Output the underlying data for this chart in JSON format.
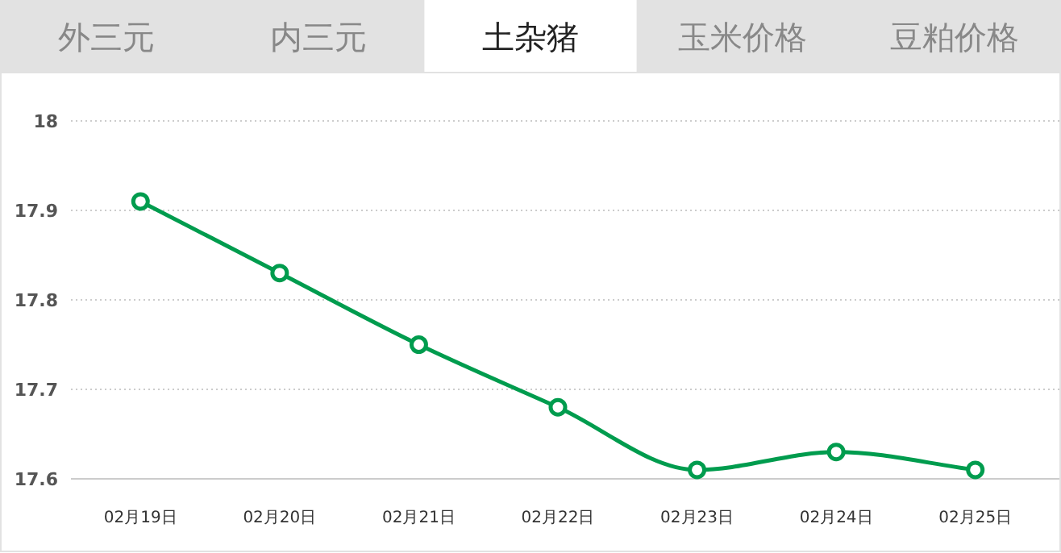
{
  "chart_data": {
    "type": "line",
    "title": "土杂猪",
    "annotations": [
      "外三元",
      "内三元",
      "玉米价格",
      "豆粕价格"
    ],
    "categories": [
      "02月19日",
      "02月20日",
      "02月21日",
      "02月22日",
      "02月23日",
      "02月24日",
      "02月25日"
    ],
    "series": [
      {
        "color": "#009c4e",
        "values": [
          17.91,
          17.83,
          17.75,
          17.68,
          17.61,
          17.63,
          17.61
        ]
      }
    ],
    "ylim": [
      17.6,
      18
    ],
    "yticks": [
      17.6,
      17.7,
      17.8,
      17.9,
      18
    ],
    "grid": "y",
    "marker": "circle",
    "line_style": "solid"
  }
}
